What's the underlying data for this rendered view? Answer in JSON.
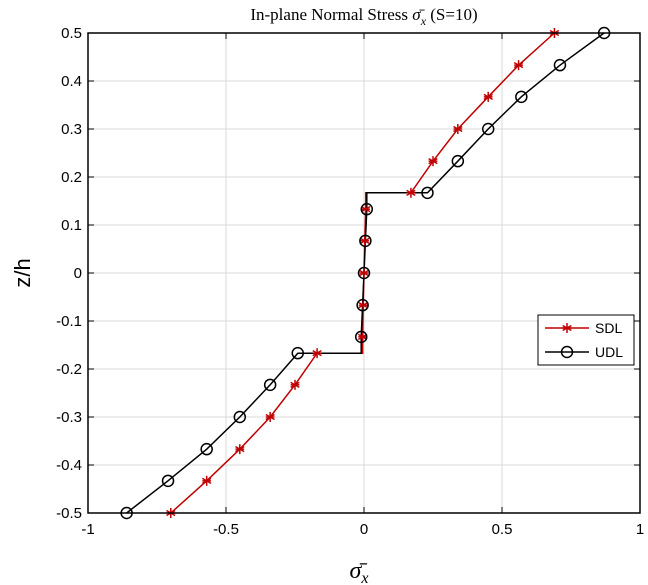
{
  "chart_data": {
    "type": "line",
    "title": "In-plane Normal Stress σ̄x (S=10)",
    "title_prefix": "In-plane Normal Stress ",
    "title_symbol": "σ̄",
    "title_subscript": "x",
    "title_suffix": " (S=10)",
    "xlabel": "σ̄x",
    "xlabel_symbol": "σ̄",
    "xlabel_subscript": "x",
    "ylabel": "z/h",
    "xlim": [
      -1,
      1
    ],
    "ylim": [
      -0.5,
      0.5
    ],
    "xticks": [
      -1,
      -0.5,
      0,
      0.5,
      1
    ],
    "xtick_labels": [
      "-1",
      "-0.5",
      "0",
      "0.5",
      "1"
    ],
    "yticks": [
      -0.5,
      -0.4,
      -0.3,
      -0.2,
      -0.1,
      0,
      0.1,
      0.2,
      0.3,
      0.4,
      0.5
    ],
    "ytick_labels": [
      "-0.5",
      "-0.4",
      "-0.3",
      "-0.2",
      "-0.1",
      "0",
      "0.1",
      "0.2",
      "0.3",
      "0.4",
      "0.5"
    ],
    "grid": true,
    "legend_position": "right",
    "series": [
      {
        "name": "SDL",
        "color": "#c00000",
        "marker": "asterisk",
        "points": [
          [
            -0.7,
            -0.5
          ],
          [
            -0.57,
            -0.433
          ],
          [
            -0.45,
            -0.367
          ],
          [
            -0.34,
            -0.3
          ],
          [
            -0.25,
            -0.233
          ],
          [
            -0.17,
            -0.167
          ],
          [
            -0.005,
            -0.167
          ],
          [
            -0.005,
            -0.133
          ],
          [
            -0.003,
            -0.067
          ],
          [
            0.0,
            0.0
          ],
          [
            0.003,
            0.067
          ],
          [
            0.006,
            0.133
          ],
          [
            0.006,
            0.167
          ],
          [
            0.17,
            0.167
          ],
          [
            0.25,
            0.233
          ],
          [
            0.34,
            0.3
          ],
          [
            0.45,
            0.367
          ],
          [
            0.56,
            0.433
          ],
          [
            0.69,
            0.5
          ]
        ]
      },
      {
        "name": "UDL",
        "color": "#000000",
        "marker": "circle",
        "points": [
          [
            -0.86,
            -0.5
          ],
          [
            -0.71,
            -0.433
          ],
          [
            -0.57,
            -0.367
          ],
          [
            -0.45,
            -0.3
          ],
          [
            -0.34,
            -0.233
          ],
          [
            -0.24,
            -0.167
          ],
          [
            -0.01,
            -0.167
          ],
          [
            -0.01,
            -0.133
          ],
          [
            -0.005,
            -0.067
          ],
          [
            0.0,
            0.0
          ],
          [
            0.005,
            0.067
          ],
          [
            0.01,
            0.133
          ],
          [
            0.01,
            0.167
          ],
          [
            0.23,
            0.167
          ],
          [
            0.34,
            0.233
          ],
          [
            0.45,
            0.3
          ],
          [
            0.57,
            0.367
          ],
          [
            0.71,
            0.433
          ],
          [
            0.87,
            0.5
          ]
        ]
      }
    ]
  }
}
